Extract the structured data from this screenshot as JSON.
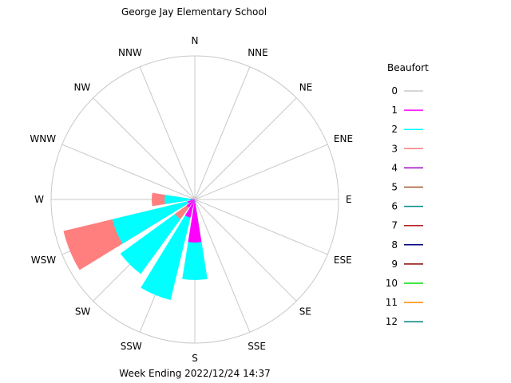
{
  "chart_data": {
    "type": "wind-rose",
    "title": "George Jay Elementary School",
    "subtitle": "Week Ending 2022/12/24 14:37",
    "directions": [
      "N",
      "NNE",
      "NE",
      "ENE",
      "E",
      "ESE",
      "SE",
      "SSE",
      "S",
      "SSW",
      "SW",
      "WSW",
      "W",
      "WNW",
      "NW",
      "NNW"
    ],
    "legend": {
      "title": "Beaufort",
      "placement": "right",
      "entries": [
        {
          "label": "0",
          "color": "#c8c8c8"
        },
        {
          "label": "1",
          "color": "#ff00ff"
        },
        {
          "label": "2",
          "color": "#00ffff"
        },
        {
          "label": "3",
          "color": "#ff7f7f"
        },
        {
          "label": "4",
          "color": "#a000c0"
        },
        {
          "label": "5",
          "color": "#a0522d"
        },
        {
          "label": "6",
          "color": "#008b8b"
        },
        {
          "label": "7",
          "color": "#b22222"
        },
        {
          "label": "8",
          "color": "#000080"
        },
        {
          "label": "9",
          "color": "#8b0000"
        },
        {
          "label": "10",
          "color": "#00dd00"
        },
        {
          "label": "11",
          "color": "#ff8c00"
        },
        {
          "label": "12",
          "color": "#008080"
        }
      ]
    },
    "series": [
      {
        "direction": "S",
        "bands": [
          {
            "beaufort": 1,
            "value": 0.3
          },
          {
            "beaufort": 2,
            "value": 0.56
          }
        ]
      },
      {
        "direction": "SSW",
        "bands": [
          {
            "beaufort": 1,
            "value": 0.13
          },
          {
            "beaufort": 2,
            "value": 0.72
          }
        ]
      },
      {
        "direction": "SW",
        "bands": [
          {
            "beaufort": 1,
            "value": 0.07
          },
          {
            "beaufort": 2,
            "value": 0.64
          },
          {
            "beaufort": 3,
            "value": 0.17
          }
        ]
      },
      {
        "direction": "WSW",
        "bands": [
          {
            "beaufort": 1,
            "value": 0.05
          },
          {
            "beaufort": 2,
            "value": 0.59
          },
          {
            "beaufort": 3,
            "value": 0.94
          }
        ]
      },
      {
        "direction": "W",
        "bands": [
          {
            "beaufort": 1,
            "value": 0.03
          },
          {
            "beaufort": 2,
            "value": 0.21
          },
          {
            "beaufort": 3,
            "value": 0.3
          }
        ]
      }
    ],
    "rmax": 1.0,
    "grid": true
  }
}
